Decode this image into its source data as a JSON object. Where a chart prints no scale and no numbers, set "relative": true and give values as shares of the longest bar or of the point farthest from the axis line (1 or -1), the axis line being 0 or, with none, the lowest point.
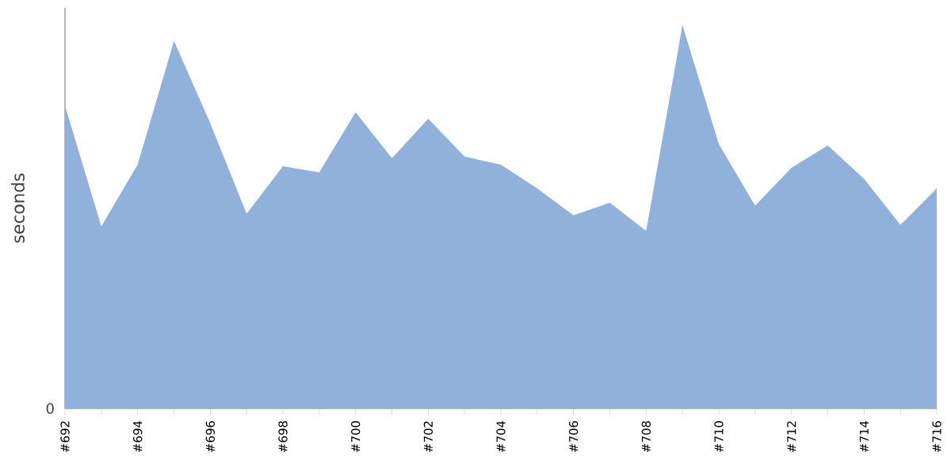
{
  "chart_data": {
    "type": "area",
    "ylabel": "seconds",
    "relative": true,
    "color": "#8fb1da",
    "categories": [
      "#692",
      null,
      "#694",
      null,
      "#696",
      null,
      "#698",
      null,
      "#700",
      null,
      "#702",
      null,
      "#704",
      null,
      "#706",
      null,
      "#708",
      null,
      "#710",
      null,
      "#712",
      null,
      "#714",
      null,
      "#716"
    ],
    "values": [
      0.79,
      0.475,
      0.636,
      0.959,
      0.744,
      0.508,
      0.632,
      0.616,
      0.773,
      0.653,
      0.756,
      0.657,
      0.636,
      0.574,
      0.504,
      0.537,
      0.463,
      1,
      0.69,
      0.529,
      0.628,
      0.686,
      0.599,
      0.479,
      0.574
    ],
    "annotations": [
      "0"
    ]
  }
}
